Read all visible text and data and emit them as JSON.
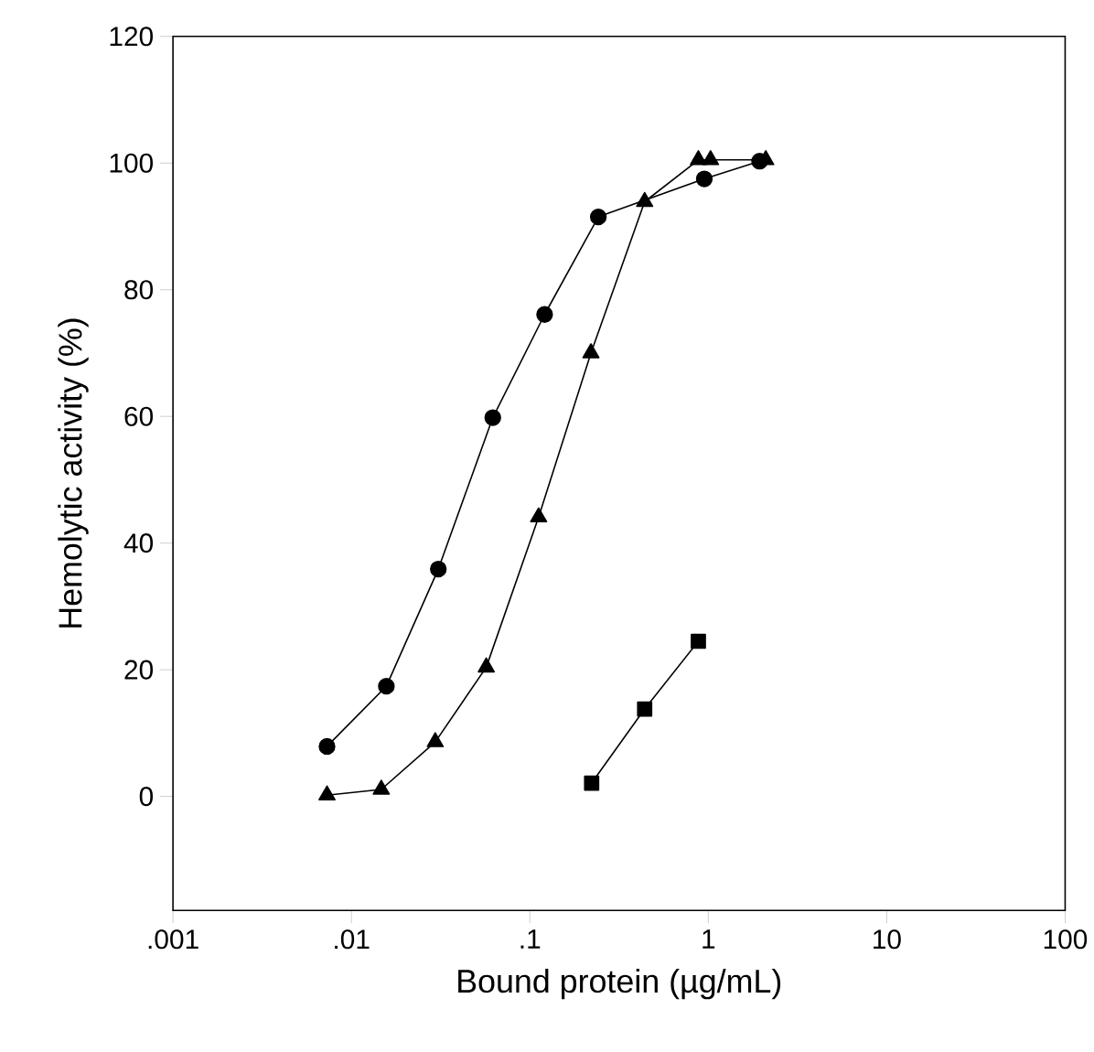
{
  "chart_data": {
    "type": "line",
    "xlabel": "Bound protein (µg/mL)",
    "ylabel": "Hemolytic activity (%)",
    "log": "x",
    "xlim": [
      0.001,
      100
    ],
    "xticks": [
      {
        "value": 0.001,
        "label": ".001"
      },
      {
        "value": 0.01,
        "label": ".01"
      },
      {
        "value": 0.1,
        "label": ".1"
      },
      1,
      10,
      100
    ],
    "ylim": [
      -18,
      120
    ],
    "yticks": [
      0,
      20,
      40,
      60,
      80,
      100,
      120
    ],
    "line_style": "solid",
    "series": [
      {
        "color": "#000000",
        "marker": "circle",
        "x": [
          0.0073,
          0.0157,
          0.0307,
          0.062,
          0.121,
          0.242,
          0.95,
          1.94
        ],
        "values": [
          7.9,
          17.4,
          35.9,
          59.8,
          76.1,
          91.5,
          97.5,
          100.3
        ]
      },
      {
        "color": "#000000",
        "marker": "triangle",
        "x": [
          0.0073,
          0.0147,
          0.0295,
          0.057,
          0.112,
          0.22,
          0.44,
          0.88,
          1.03,
          2.1
        ],
        "values": [
          0.2,
          1.1,
          8.6,
          20.4,
          44.1,
          70.0,
          93.9,
          100.5,
          100.5,
          100.5
        ]
      },
      {
        "color": "#000000",
        "marker": "square",
        "x": [
          0.222,
          0.44,
          0.88
        ],
        "values": [
          2.1,
          13.8,
          24.5
        ]
      }
    ]
  }
}
